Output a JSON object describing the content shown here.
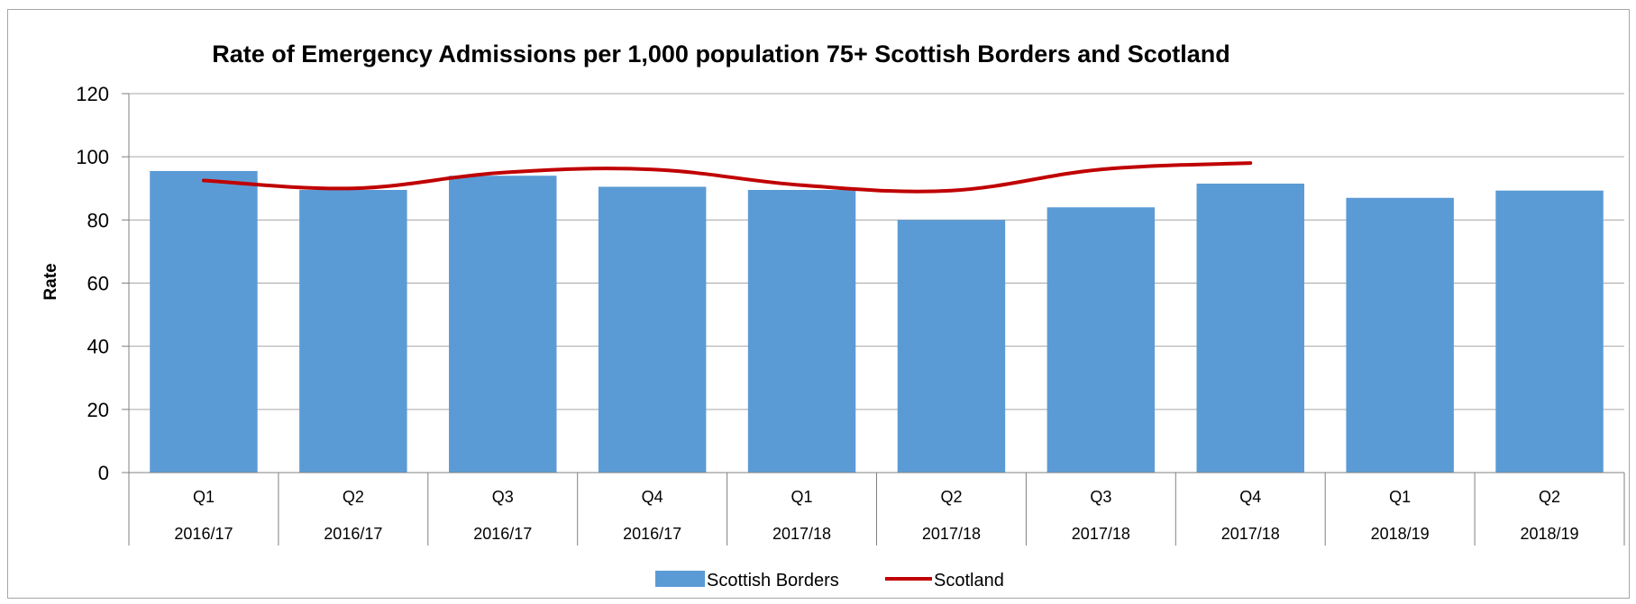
{
  "chart_data": {
    "type": "bar",
    "title": "Rate of Emergency Admissions per 1,000 population 75+ Scottish Borders and Scotland",
    "xlabel": "",
    "ylabel": "Rate",
    "ylim": [
      0,
      120
    ],
    "yticks": [
      0,
      20,
      40,
      60,
      80,
      100,
      120
    ],
    "grid": true,
    "legend_position": "bottom",
    "categories": [
      {
        "quarter": "Q1",
        "year": "2016/17"
      },
      {
        "quarter": "Q2",
        "year": "2016/17"
      },
      {
        "quarter": "Q3",
        "year": "2016/17"
      },
      {
        "quarter": "Q4",
        "year": "2016/17"
      },
      {
        "quarter": "Q1",
        "year": "2017/18"
      },
      {
        "quarter": "Q2",
        "year": "2017/18"
      },
      {
        "quarter": "Q3",
        "year": "2017/18"
      },
      {
        "quarter": "Q4",
        "year": "2017/18"
      },
      {
        "quarter": "Q1",
        "year": "2018/19"
      },
      {
        "quarter": "Q2",
        "year": "2018/19"
      }
    ],
    "series": [
      {
        "name": "Scottish Borders",
        "type": "bar",
        "color": "#5b9bd5",
        "values": [
          95.5,
          89.5,
          94,
          90.5,
          89.5,
          80,
          84,
          91.5,
          87,
          89.3
        ]
      },
      {
        "name": "Scotland",
        "type": "line",
        "color": "#c00000",
        "values": [
          92.5,
          90,
          95,
          96,
          91,
          89.3,
          96,
          98,
          null,
          null
        ]
      }
    ]
  }
}
